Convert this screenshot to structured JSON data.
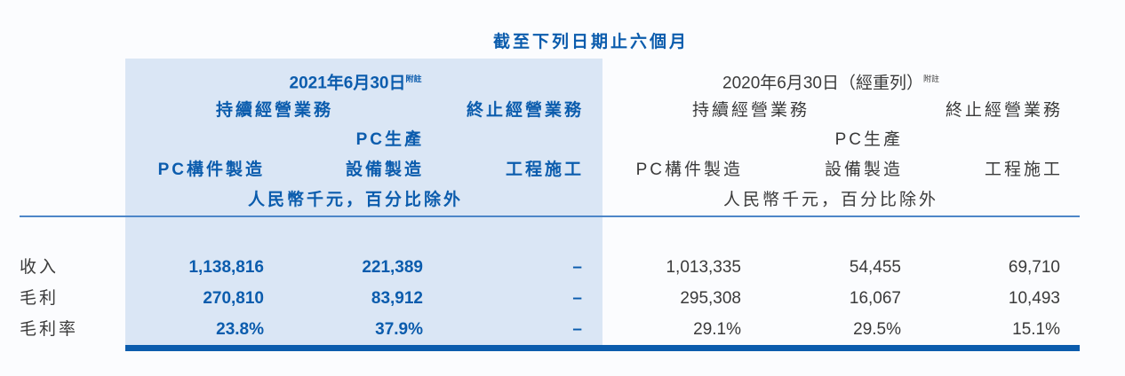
{
  "title": "截至下列日期止六個月",
  "period_2021": {
    "date": "2021年6月30日",
    "note": "附註",
    "continuing": "持續經營業務",
    "discontinued": "終止經營業務",
    "col1": "PC構件製造",
    "col2_line1": "PC生產",
    "col2_line2": "設備製造",
    "col3": "工程施工",
    "unit": "人民幣千元，百分比除外"
  },
  "period_2020": {
    "date": "2020年6月30日（經重列）",
    "note": "附註",
    "continuing": "持續經營業務",
    "discontinued": "終止經營業務",
    "col1": "PC構件製造",
    "col2_line1": "PC生產",
    "col2_line2": "設備製造",
    "col3": "工程施工",
    "unit": "人民幣千元，百分比除外"
  },
  "rows": [
    {
      "label": "收入",
      "values": [
        "1,138,816",
        "221,389",
        "–",
        "1,013,335",
        "54,455",
        "69,710"
      ]
    },
    {
      "label": "毛利",
      "values": [
        "270,810",
        "83,912",
        "–",
        "295,308",
        "16,067",
        "10,493"
      ]
    },
    {
      "label": "毛利率",
      "values": [
        "23.8%",
        "37.9%",
        "–",
        "29.1%",
        "29.5%",
        "15.1%"
      ]
    }
  ],
  "colors": {
    "accent": "#0b5cad",
    "shade": "#dae6f5"
  }
}
